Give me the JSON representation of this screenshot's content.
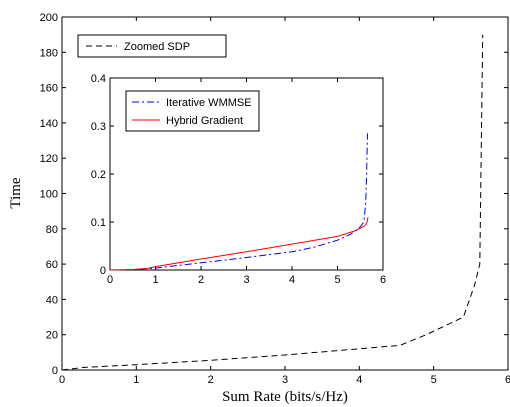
{
  "chart_data": [
    {
      "type": "line",
      "xlabel": "Sum Rate (bits/s/Hz)",
      "ylabel": "Time",
      "xlim": [
        0,
        6
      ],
      "ylim": [
        0,
        200
      ],
      "xticks": [
        "0",
        "1",
        "2",
        "3",
        "4",
        "5",
        "6"
      ],
      "yticks": [
        "0",
        "20",
        "40",
        "60",
        "80",
        "100",
        "120",
        "140",
        "160",
        "180",
        "200"
      ],
      "grid": false,
      "legend_position": "top-left",
      "series": [
        {
          "name": "Zoomed SDP",
          "color": "#000000",
          "style": "dashed",
          "x": [
            0.0,
            0.3,
            1.0,
            2.0,
            3.0,
            4.0,
            4.55,
            4.9,
            5.4,
            5.55,
            5.62,
            5.66
          ],
          "y": [
            0,
            1.5,
            3,
            5.5,
            8.5,
            12,
            14,
            20,
            30,
            48,
            60,
            190
          ]
        }
      ]
    },
    {
      "type": "line",
      "xlim": [
        0,
        6
      ],
      "ylim": [
        0,
        0.4
      ],
      "xticks": [
        "0",
        "1",
        "2",
        "3",
        "4",
        "5",
        "6"
      ],
      "yticks": [
        "0",
        "0.1",
        "0.2",
        "0.3",
        "0.4"
      ],
      "grid": false,
      "legend_position": "top-left",
      "series": [
        {
          "name": "Iterative WMMSE",
          "color": "#0000ff",
          "style": "dashdot",
          "x": [
            0.0,
            0.5,
            1.0,
            2.0,
            3.0,
            4.0,
            4.5,
            5.0,
            5.3,
            5.5,
            5.58,
            5.62,
            5.64,
            5.66
          ],
          "y": [
            0.0,
            0.001,
            0.004,
            0.015,
            0.026,
            0.038,
            0.048,
            0.062,
            0.075,
            0.09,
            0.1,
            0.14,
            0.2,
            0.285
          ]
        },
        {
          "name": "Hybrid Gradient",
          "color": "#ff0000",
          "style": "solid",
          "x": [
            0.0,
            0.5,
            0.8,
            1.0,
            2.0,
            3.0,
            4.0,
            5.0,
            5.4,
            5.6,
            5.65,
            5.67
          ],
          "y": [
            0.0,
            0.001,
            0.003,
            0.007,
            0.023,
            0.038,
            0.054,
            0.07,
            0.082,
            0.092,
            0.1,
            0.11
          ]
        }
      ]
    }
  ]
}
